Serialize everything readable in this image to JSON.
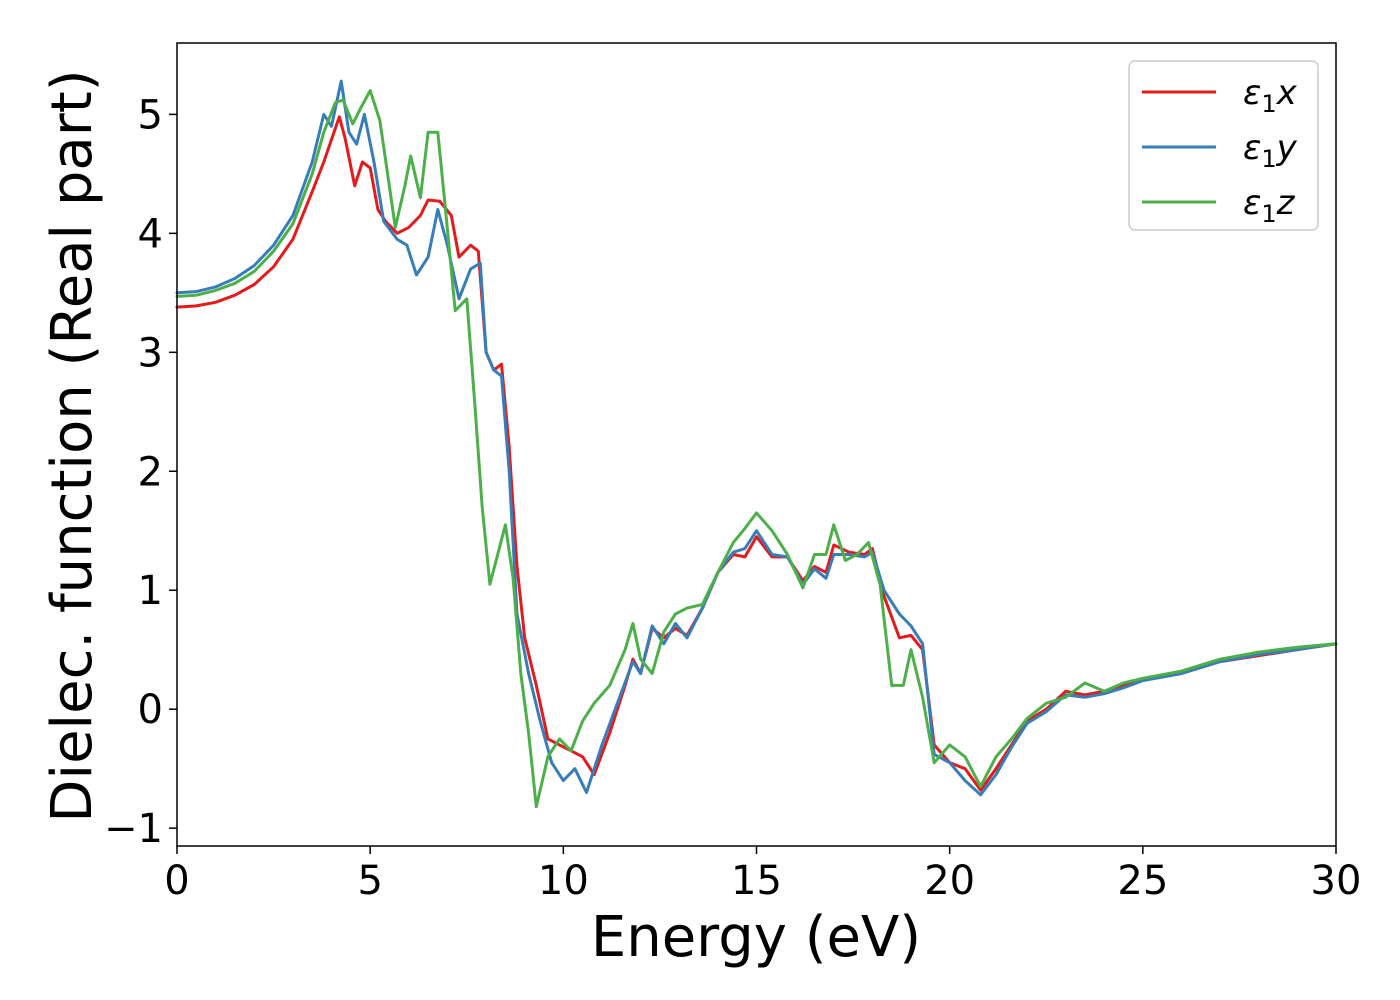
{
  "chart_data": {
    "type": "line",
    "xlabel": "Energy (eV)",
    "ylabel": "Dielec. function (Real part)",
    "xlim": [
      0,
      30
    ],
    "ylim": [
      -1.15,
      5.6
    ],
    "xticks": [
      0,
      5,
      10,
      15,
      20,
      25,
      30
    ],
    "xtick_labels": [
      "0",
      "5",
      "10",
      "15",
      "20",
      "25",
      "30"
    ],
    "yticks": [
      -1,
      0,
      1,
      2,
      3,
      4,
      5
    ],
    "ytick_labels": [
      "−1",
      "0",
      "1",
      "2",
      "3",
      "4",
      "5"
    ],
    "grid": false,
    "legend_position": "top-right",
    "series": [
      {
        "name": "ε₁x",
        "symbol": "ε",
        "sub": "1",
        "axis": "x",
        "color": "#e41a1c",
        "points": [
          [
            0,
            3.38
          ],
          [
            0.5,
            3.39
          ],
          [
            1,
            3.42
          ],
          [
            1.5,
            3.48
          ],
          [
            2,
            3.57
          ],
          [
            2.5,
            3.72
          ],
          [
            3,
            3.95
          ],
          [
            3.5,
            4.35
          ],
          [
            3.8,
            4.6
          ],
          [
            4.2,
            4.98
          ],
          [
            4.35,
            4.8
          ],
          [
            4.6,
            4.4
          ],
          [
            4.8,
            4.6
          ],
          [
            5,
            4.55
          ],
          [
            5.2,
            4.2
          ],
          [
            5.4,
            4.1
          ],
          [
            5.7,
            4.0
          ],
          [
            6,
            4.05
          ],
          [
            6.3,
            4.15
          ],
          [
            6.5,
            4.28
          ],
          [
            6.8,
            4.27
          ],
          [
            7.1,
            4.15
          ],
          [
            7.3,
            3.8
          ],
          [
            7.6,
            3.9
          ],
          [
            7.8,
            3.85
          ],
          [
            8,
            3.0
          ],
          [
            8.2,
            2.85
          ],
          [
            8.4,
            2.9
          ],
          [
            8.6,
            2.2
          ],
          [
            8.8,
            1.2
          ],
          [
            9.0,
            0.6
          ],
          [
            9.3,
            0.2
          ],
          [
            9.6,
            -0.25
          ],
          [
            9.9,
            -0.3
          ],
          [
            10.2,
            -0.35
          ],
          [
            10.5,
            -0.4
          ],
          [
            10.8,
            -0.55
          ],
          [
            11.2,
            -0.2
          ],
          [
            11.6,
            0.2
          ],
          [
            11.8,
            0.42
          ],
          [
            12.0,
            0.3
          ],
          [
            12.3,
            0.68
          ],
          [
            12.6,
            0.6
          ],
          [
            12.9,
            0.68
          ],
          [
            13.2,
            0.62
          ],
          [
            13.6,
            0.85
          ],
          [
            14.0,
            1.15
          ],
          [
            14.4,
            1.3
          ],
          [
            14.7,
            1.28
          ],
          [
            15.0,
            1.45
          ],
          [
            15.4,
            1.28
          ],
          [
            15.8,
            1.28
          ],
          [
            16.2,
            1.08
          ],
          [
            16.5,
            1.2
          ],
          [
            16.8,
            1.15
          ],
          [
            17.0,
            1.38
          ],
          [
            17.4,
            1.32
          ],
          [
            17.8,
            1.3
          ],
          [
            18.0,
            1.35
          ],
          [
            18.3,
            0.95
          ],
          [
            18.7,
            0.6
          ],
          [
            19.0,
            0.62
          ],
          [
            19.3,
            0.5
          ],
          [
            19.6,
            -0.3
          ],
          [
            20.0,
            -0.45
          ],
          [
            20.4,
            -0.5
          ],
          [
            20.8,
            -0.68
          ],
          [
            21.2,
            -0.5
          ],
          [
            21.6,
            -0.3
          ],
          [
            22.0,
            -0.1
          ],
          [
            22.5,
            0.0
          ],
          [
            23.0,
            0.15
          ],
          [
            23.5,
            0.12
          ],
          [
            24.0,
            0.15
          ],
          [
            24.5,
            0.2
          ],
          [
            25,
            0.25
          ],
          [
            26,
            0.3
          ],
          [
            27,
            0.4
          ],
          [
            28,
            0.45
          ],
          [
            29,
            0.5
          ],
          [
            30,
            0.55
          ]
        ]
      },
      {
        "name": "ε₁y",
        "symbol": "ε",
        "sub": "1",
        "axis": "y",
        "color": "#377eb8",
        "points": [
          [
            0,
            3.5
          ],
          [
            0.5,
            3.51
          ],
          [
            1,
            3.55
          ],
          [
            1.5,
            3.62
          ],
          [
            2,
            3.73
          ],
          [
            2.5,
            3.9
          ],
          [
            3,
            4.15
          ],
          [
            3.5,
            4.6
          ],
          [
            3.8,
            5.0
          ],
          [
            4.0,
            4.9
          ],
          [
            4.25,
            5.28
          ],
          [
            4.45,
            4.85
          ],
          [
            4.65,
            4.75
          ],
          [
            4.85,
            5.0
          ],
          [
            5.1,
            4.6
          ],
          [
            5.35,
            4.1
          ],
          [
            5.7,
            3.95
          ],
          [
            5.95,
            3.9
          ],
          [
            6.2,
            3.65
          ],
          [
            6.5,
            3.8
          ],
          [
            6.75,
            4.2
          ],
          [
            7.0,
            3.9
          ],
          [
            7.3,
            3.45
          ],
          [
            7.6,
            3.7
          ],
          [
            7.85,
            3.75
          ],
          [
            8,
            3.0
          ],
          [
            8.2,
            2.85
          ],
          [
            8.4,
            2.8
          ],
          [
            8.6,
            2.0
          ],
          [
            8.8,
            0.8
          ],
          [
            9.1,
            0.3
          ],
          [
            9.4,
            -0.1
          ],
          [
            9.7,
            -0.45
          ],
          [
            10.0,
            -0.6
          ],
          [
            10.3,
            -0.5
          ],
          [
            10.6,
            -0.7
          ],
          [
            11.0,
            -0.3
          ],
          [
            11.4,
            0.05
          ],
          [
            11.8,
            0.4
          ],
          [
            12.0,
            0.3
          ],
          [
            12.3,
            0.7
          ],
          [
            12.6,
            0.55
          ],
          [
            12.9,
            0.72
          ],
          [
            13.2,
            0.6
          ],
          [
            13.6,
            0.85
          ],
          [
            14.0,
            1.15
          ],
          [
            14.4,
            1.32
          ],
          [
            14.7,
            1.35
          ],
          [
            15.0,
            1.5
          ],
          [
            15.4,
            1.3
          ],
          [
            15.8,
            1.28
          ],
          [
            16.2,
            1.05
          ],
          [
            16.5,
            1.18
          ],
          [
            16.8,
            1.1
          ],
          [
            17.0,
            1.3
          ],
          [
            17.4,
            1.3
          ],
          [
            17.8,
            1.28
          ],
          [
            18.0,
            1.32
          ],
          [
            18.3,
            1.0
          ],
          [
            18.7,
            0.8
          ],
          [
            19.0,
            0.7
          ],
          [
            19.3,
            0.55
          ],
          [
            19.6,
            -0.38
          ],
          [
            20.0,
            -0.45
          ],
          [
            20.4,
            -0.6
          ],
          [
            20.8,
            -0.72
          ],
          [
            21.2,
            -0.55
          ],
          [
            21.6,
            -0.32
          ],
          [
            22.0,
            -0.12
          ],
          [
            22.5,
            -0.02
          ],
          [
            23.0,
            0.12
          ],
          [
            23.5,
            0.1
          ],
          [
            24.0,
            0.13
          ],
          [
            24.5,
            0.18
          ],
          [
            25,
            0.24
          ],
          [
            26,
            0.3
          ],
          [
            27,
            0.4
          ],
          [
            28,
            0.46
          ],
          [
            29,
            0.5
          ],
          [
            30,
            0.55
          ]
        ]
      },
      {
        "name": "ε₁z",
        "symbol": "ε",
        "sub": "1",
        "axis": "z",
        "color": "#4daf4a",
        "points": [
          [
            0,
            3.47
          ],
          [
            0.5,
            3.48
          ],
          [
            1,
            3.52
          ],
          [
            1.5,
            3.58
          ],
          [
            2,
            3.68
          ],
          [
            2.5,
            3.85
          ],
          [
            3,
            4.08
          ],
          [
            3.5,
            4.5
          ],
          [
            3.8,
            4.85
          ],
          [
            4.1,
            5.1
          ],
          [
            4.3,
            5.12
          ],
          [
            4.55,
            4.92
          ],
          [
            4.75,
            5.05
          ],
          [
            5.0,
            5.2
          ],
          [
            5.25,
            4.95
          ],
          [
            5.45,
            4.5
          ],
          [
            5.65,
            4.05
          ],
          [
            5.9,
            4.4
          ],
          [
            6.05,
            4.65
          ],
          [
            6.3,
            4.3
          ],
          [
            6.5,
            4.85
          ],
          [
            6.75,
            4.85
          ],
          [
            6.95,
            4.2
          ],
          [
            7.2,
            3.35
          ],
          [
            7.5,
            3.45
          ],
          [
            7.7,
            2.6
          ],
          [
            7.9,
            1.7
          ],
          [
            8.1,
            1.05
          ],
          [
            8.3,
            1.3
          ],
          [
            8.5,
            1.55
          ],
          [
            8.7,
            1.1
          ],
          [
            8.9,
            0.3
          ],
          [
            9.1,
            -0.2
          ],
          [
            9.3,
            -0.82
          ],
          [
            9.6,
            -0.4
          ],
          [
            9.9,
            -0.25
          ],
          [
            10.2,
            -0.35
          ],
          [
            10.5,
            -0.1
          ],
          [
            10.8,
            0.05
          ],
          [
            11.2,
            0.2
          ],
          [
            11.6,
            0.5
          ],
          [
            11.8,
            0.72
          ],
          [
            12.0,
            0.42
          ],
          [
            12.3,
            0.3
          ],
          [
            12.6,
            0.65
          ],
          [
            12.9,
            0.8
          ],
          [
            13.2,
            0.85
          ],
          [
            13.6,
            0.88
          ],
          [
            14.0,
            1.15
          ],
          [
            14.4,
            1.4
          ],
          [
            14.7,
            1.52
          ],
          [
            15.0,
            1.65
          ],
          [
            15.4,
            1.5
          ],
          [
            15.8,
            1.3
          ],
          [
            16.2,
            1.02
          ],
          [
            16.5,
            1.3
          ],
          [
            16.8,
            1.3
          ],
          [
            17.0,
            1.55
          ],
          [
            17.3,
            1.25
          ],
          [
            17.6,
            1.3
          ],
          [
            17.9,
            1.4
          ],
          [
            18.2,
            1.05
          ],
          [
            18.5,
            0.2
          ],
          [
            18.8,
            0.2
          ],
          [
            19.0,
            0.5
          ],
          [
            19.3,
            0.1
          ],
          [
            19.6,
            -0.45
          ],
          [
            20.0,
            -0.3
          ],
          [
            20.4,
            -0.4
          ],
          [
            20.8,
            -0.65
          ],
          [
            21.2,
            -0.4
          ],
          [
            21.6,
            -0.25
          ],
          [
            22.0,
            -0.08
          ],
          [
            22.5,
            0.05
          ],
          [
            23.0,
            0.1
          ],
          [
            23.5,
            0.22
          ],
          [
            24.0,
            0.15
          ],
          [
            24.5,
            0.22
          ],
          [
            25,
            0.26
          ],
          [
            26,
            0.32
          ],
          [
            27,
            0.42
          ],
          [
            28,
            0.48
          ],
          [
            29,
            0.52
          ],
          [
            30,
            0.55
          ]
        ]
      }
    ]
  }
}
